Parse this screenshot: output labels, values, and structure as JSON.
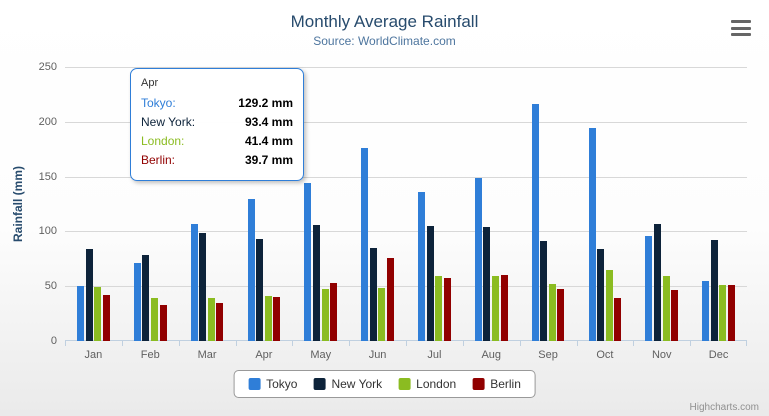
{
  "title": "Monthly Average Rainfall",
  "subtitle": "Source: WorldClimate.com",
  "credits": "Highcharts.com",
  "menu_icon": "hamburger-menu-icon",
  "chart_data": {
    "type": "bar",
    "orientation": "vertical",
    "title": "Monthly Average Rainfall",
    "subtitle": "Source: WorldClimate.com",
    "ylabel": "Rainfall (mm)",
    "ylim": [
      0,
      250
    ],
    "ytick_interval": 50,
    "grid": true,
    "legend_position": "bottom",
    "categories": [
      "Jan",
      "Feb",
      "Mar",
      "Apr",
      "May",
      "Jun",
      "Jul",
      "Aug",
      "Sep",
      "Oct",
      "Nov",
      "Dec"
    ],
    "series": [
      {
        "name": "Tokyo",
        "color": "#2f7ed8",
        "values": [
          49.9,
          71.5,
          106.4,
          129.2,
          144.0,
          176.0,
          135.6,
          148.5,
          216.4,
          194.1,
          95.6,
          54.4
        ]
      },
      {
        "name": "New York",
        "color": "#0d233a",
        "values": [
          83.6,
          78.8,
          98.5,
          93.4,
          106.0,
          84.5,
          105.0,
          104.3,
          91.2,
          83.5,
          106.6,
          92.3
        ]
      },
      {
        "name": "London",
        "color": "#8bbc21",
        "values": [
          48.9,
          38.8,
          39.3,
          41.4,
          47.0,
          48.3,
          59.0,
          59.6,
          52.4,
          65.2,
          59.3,
          51.2
        ]
      },
      {
        "name": "Berlin",
        "color": "#910000",
        "values": [
          42.4,
          33.2,
          34.5,
          39.7,
          52.6,
          75.5,
          57.4,
          60.4,
          47.6,
          39.1,
          46.8,
          51.1
        ]
      }
    ]
  },
  "tooltip": {
    "category": "Apr",
    "rows": [
      {
        "label": "Tokyo:",
        "value": "129.2 mm",
        "color": "#2f7ed8"
      },
      {
        "label": "New York:",
        "value": "93.4 mm",
        "color": "#0d233a"
      },
      {
        "label": "London:",
        "value": "41.4 mm",
        "color": "#8bbc21"
      },
      {
        "label": "Berlin:",
        "value": "39.7 mm",
        "color": "#910000"
      }
    ]
  }
}
